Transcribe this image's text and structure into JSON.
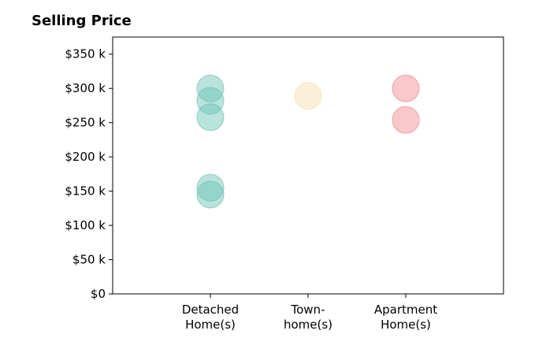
{
  "chart_data": {
    "type": "scatter",
    "title": "Selling Price",
    "xlabel": "",
    "ylabel": "",
    "categories": [
      [
        "Detached",
        "Home(s)"
      ],
      [
        "Town-",
        "home(s)"
      ],
      [
        "Apartment",
        "Home(s)"
      ]
    ],
    "ylim": [
      0,
      375000
    ],
    "yticks": [
      0,
      50000,
      100000,
      150000,
      200000,
      250000,
      300000,
      350000
    ],
    "ytick_labels": [
      "$0",
      "$50 k",
      "$100 k",
      "$150 k",
      "$200 k",
      "$250 k",
      "$300 k",
      "$350 k"
    ],
    "grid": false,
    "points": [
      {
        "category": 0,
        "y": 300000
      },
      {
        "category": 0,
        "y": 282000
      },
      {
        "category": 0,
        "y": 258000
      },
      {
        "category": 0,
        "y": 155000
      },
      {
        "category": 0,
        "y": 145000
      },
      {
        "category": 1,
        "y": 289000
      },
      {
        "category": 2,
        "y": 300000
      },
      {
        "category": 2,
        "y": 254000
      }
    ],
    "category_colors": [
      "#66c2b1",
      "#f5deae",
      "#f0848c"
    ]
  }
}
